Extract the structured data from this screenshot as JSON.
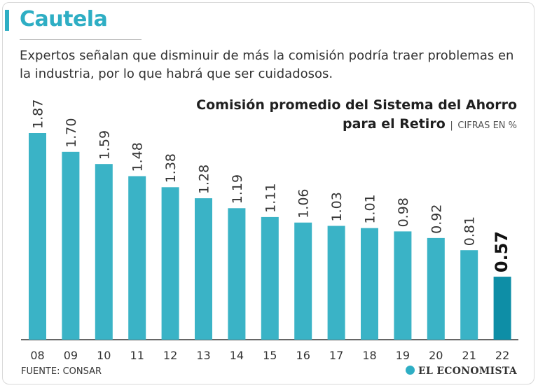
{
  "header": {
    "title": "Cautela",
    "subtitle": "Expertos señalan que disminuir de más la comisión podría traer problemas en la industria, por lo que habrá que ser cuidadosos."
  },
  "chart_data": {
    "type": "bar",
    "title_line1": "Comisión promedio del Sistema del Ahorro",
    "title_line2": "para el Retiro",
    "unit_label": "CIFRAS EN %",
    "categories": [
      "08",
      "09",
      "10",
      "11",
      "12",
      "13",
      "14",
      "15",
      "16",
      "17",
      "18",
      "19",
      "20",
      "21",
      "22"
    ],
    "values": [
      1.87,
      1.7,
      1.59,
      1.48,
      1.38,
      1.28,
      1.19,
      1.11,
      1.06,
      1.03,
      1.01,
      0.98,
      0.92,
      0.81,
      0.57
    ],
    "value_labels": [
      "1.87",
      "1.70",
      "1.59",
      "1.48",
      "1.38",
      "1.28",
      "1.19",
      "1.11",
      "1.06",
      "1.03",
      "1.01",
      "0.98",
      "0.92",
      "0.81",
      "0.57"
    ],
    "highlight_index": 14,
    "xlabel": "",
    "ylabel": "",
    "ylim": [
      0,
      1.87
    ],
    "colors": {
      "bar": "#3ab3c6",
      "highlight": "#0e8ea6",
      "axis": "#333333"
    }
  },
  "footer": {
    "source": "FUENTE: CONSAR",
    "brand": "EL ECONOMISTA"
  }
}
